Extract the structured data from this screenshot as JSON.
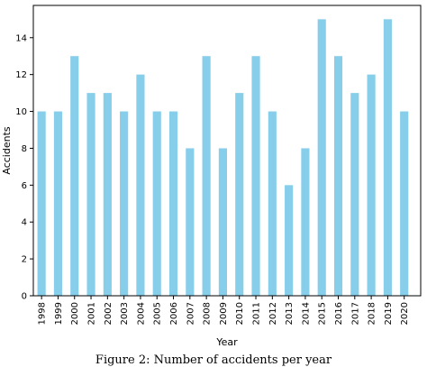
{
  "caption": "Figure 2: Number of accidents per year",
  "chart_data": {
    "type": "bar",
    "title": "",
    "xlabel": "Year",
    "ylabel": "Accidents",
    "categories": [
      "1998",
      "1999",
      "2000",
      "2001",
      "2002",
      "2003",
      "2004",
      "2005",
      "2006",
      "2007",
      "2008",
      "2009",
      "2010",
      "2011",
      "2012",
      "2013",
      "2014",
      "2015",
      "2016",
      "2017",
      "2018",
      "2019",
      "2020"
    ],
    "values": [
      10,
      10,
      13,
      11,
      11,
      10,
      12,
      10,
      10,
      8,
      13,
      8,
      11,
      13,
      10,
      6,
      8,
      15,
      13,
      11,
      12,
      15,
      10
    ],
    "ylim": [
      0,
      15.75
    ],
    "yticks": [
      0,
      2,
      4,
      6,
      8,
      10,
      12,
      14
    ],
    "bar_color": "#87ceeb",
    "grid": false,
    "legend": "none"
  }
}
